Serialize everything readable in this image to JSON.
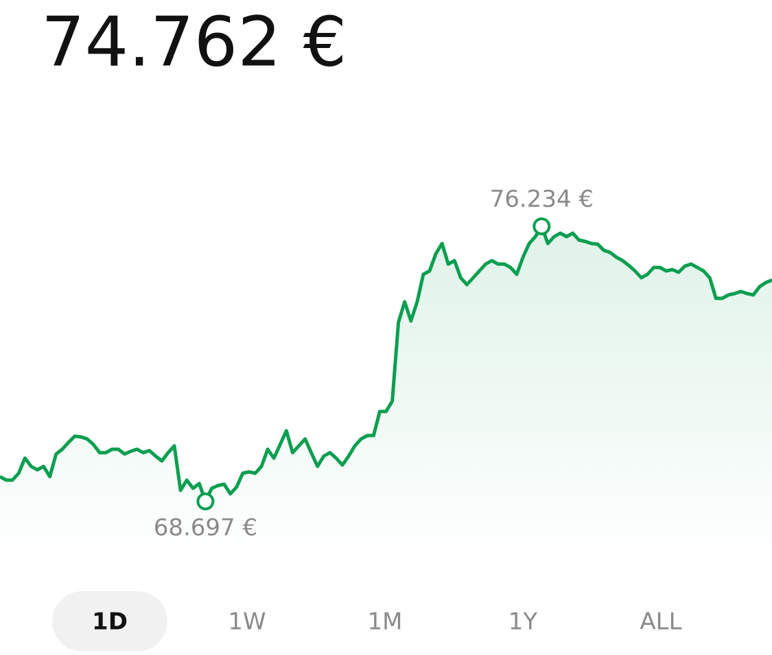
{
  "chart_data": {
    "type": "line",
    "title": "74.762 €",
    "color": "#0a9e50",
    "values": [
      69.374,
      69.28,
      69.28,
      69.468,
      69.881,
      69.656,
      69.562,
      69.656,
      69.374,
      69.994,
      70.126,
      70.314,
      70.483,
      70.464,
      70.408,
      70.257,
      70.032,
      70.032,
      70.126,
      70.126,
      69.994,
      70.069,
      70.126,
      70.032,
      70.088,
      69.938,
      69.806,
      70.032,
      70.22,
      68.998,
      69.28,
      69.054,
      69.186,
      68.697,
      69.054,
      69.129,
      69.167,
      68.904,
      69.092,
      69.468,
      69.505,
      69.468,
      69.656,
      70.126,
      69.881,
      70.257,
      70.633,
      70.032,
      70.22,
      70.408,
      70.032,
      69.656,
      69.938,
      70.032,
      69.881,
      69.693,
      69.938,
      70.22,
      70.408,
      70.502,
      70.502,
      71.159,
      71.159,
      71.441,
      73.603,
      74.167,
      73.64,
      74.167,
      74.918,
      75.012,
      75.482,
      75.764,
      75.2,
      75.294,
      74.824,
      74.636,
      74.824,
      75.012,
      75.2,
      75.294,
      75.2,
      75.2,
      75.106,
      74.918,
      75.388,
      75.764,
      75.952,
      76.234,
      75.764,
      75.952,
      76.046,
      75.952,
      76.046,
      75.858,
      75.821,
      75.764,
      75.745,
      75.576,
      75.52,
      75.388,
      75.294,
      75.163,
      75.012,
      74.824,
      74.918,
      75.106,
      75.106,
      75.012,
      75.05,
      74.975,
      75.144,
      75.2,
      75.106,
      75.012,
      74.824,
      74.261,
      74.261,
      74.354,
      74.392,
      74.448,
      74.392,
      74.354,
      74.58,
      74.693,
      74.762
    ],
    "max_label": "76.234 €",
    "min_label": "68.697 €",
    "ranges": [
      "1D",
      "1W",
      "1M",
      "1Y",
      "ALL"
    ],
    "selected_range": 0
  }
}
